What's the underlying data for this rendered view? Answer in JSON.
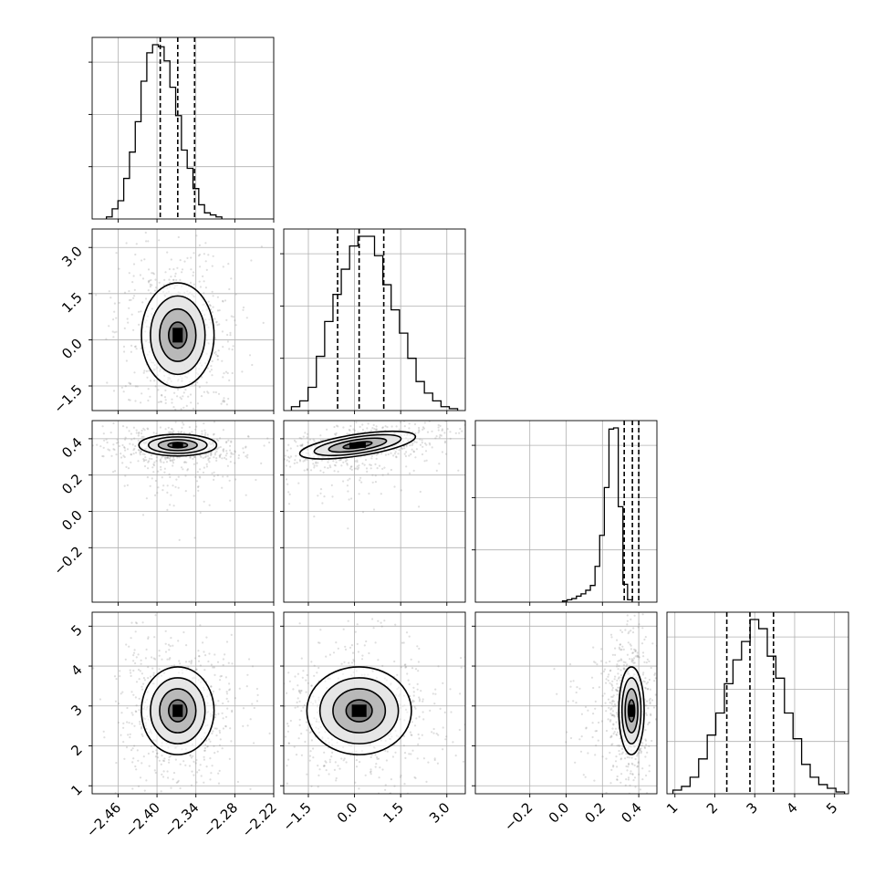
{
  "chart_data": {
    "type": "corner",
    "params": [
      {
        "range": [
          -2.5,
          -2.22
        ],
        "ticks": [
          "−2.46",
          "−2.40",
          "−2.34",
          "−2.28",
          "−2.22"
        ],
        "tick_values": [
          -2.46,
          -2.4,
          -2.34,
          -2.28,
          -2.22
        ],
        "quantiles": [
          -2.395,
          -2.368,
          -2.342
        ],
        "hist": {
          "start": -2.478,
          "width": 0.0089,
          "counts": [
            1,
            5,
            9,
            20,
            33,
            48,
            68,
            82,
            86,
            85,
            78,
            65,
            51,
            34,
            25,
            15,
            7,
            3,
            2,
            1
          ]
        }
      },
      {
        "range": [
          -2.3,
          3.6
        ],
        "ticks": [
          "−1.5",
          "0.0",
          "1.5",
          "3.0"
        ],
        "tick_values": [
          -1.5,
          0.0,
          1.5,
          3.0
        ],
        "quantiles": [
          -0.55,
          0.15,
          0.95
        ],
        "hist": {
          "start": -2.05,
          "width": 0.27,
          "counts": [
            2,
            5,
            12,
            28,
            46,
            60,
            73,
            85,
            90,
            90,
            80,
            65,
            52,
            40,
            27,
            15,
            9,
            5,
            2,
            1
          ]
        }
      },
      {
        "range": [
          -0.5,
          0.5
        ],
        "ticks": [
          "−0.2",
          "0.0",
          "0.2",
          "0.4"
        ],
        "tick_values": [
          -0.2,
          0.0,
          0.2,
          0.4
        ],
        "quantiles": [
          0.32,
          0.365,
          0.4
        ],
        "hist": {
          "start": -0.02,
          "width": 0.0256,
          "counts": [
            1,
            2,
            3,
            5,
            7,
            10,
            14,
            30,
            56,
            96,
            145,
            146,
            80,
            15,
            2
          ]
        }
      },
      {
        "range": [
          0.8,
          5.35
        ],
        "ticks": [
          "1",
          "2",
          "3",
          "4",
          "5"
        ],
        "tick_values": [
          1,
          2,
          3,
          4,
          5
        ],
        "quantiles": [
          2.3,
          2.88,
          3.47
        ],
        "hist": {
          "start": 0.95,
          "width": 0.215,
          "counts": [
            2,
            4,
            9,
            19,
            32,
            44,
            60,
            73,
            83,
            95,
            90,
            75,
            63,
            44,
            30,
            16,
            9,
            5,
            3,
            1
          ]
        }
      }
    ],
    "pairs": [
      {
        "row": 1,
        "col": 0,
        "center": [
          -2.368,
          0.15
        ],
        "spread": [
          0.028,
          0.85
        ],
        "angle": 0
      },
      {
        "row": 2,
        "col": 0,
        "center": [
          -2.368,
          0.365
        ],
        "spread": [
          0.03,
          0.03
        ],
        "angle": 0
      },
      {
        "row": 2,
        "col": 1,
        "center": [
          0.1,
          0.365
        ],
        "spread": [
          0.95,
          0.03
        ],
        "angle": -0.15
      },
      {
        "row": 3,
        "col": 0,
        "center": [
          -2.368,
          2.88
        ],
        "spread": [
          0.028,
          0.55
        ],
        "angle": 0
      },
      {
        "row": 3,
        "col": 1,
        "center": [
          0.15,
          2.88
        ],
        "spread": [
          0.85,
          0.55
        ],
        "angle": 0
      },
      {
        "row": 3,
        "col": 2,
        "center": [
          0.36,
          2.88
        ],
        "spread": [
          0.035,
          0.55
        ],
        "angle": 0
      }
    ]
  }
}
